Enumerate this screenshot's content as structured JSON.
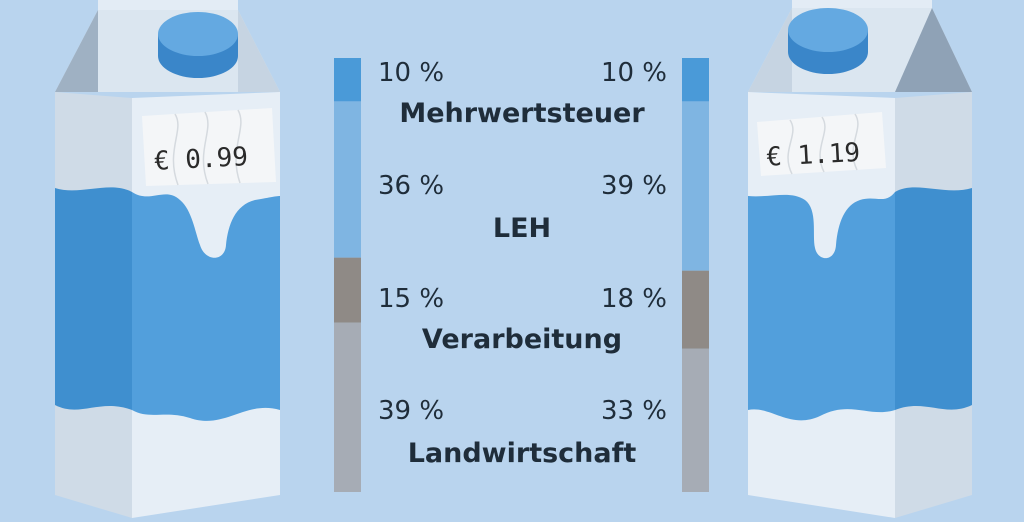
{
  "palette": {
    "background": "#b9d4ee",
    "mehrwertsteuer": "#4a9ad8",
    "leh": "#7fb5e2",
    "verarbeitung": "#8f8a86",
    "landwirtschaft": "#a6acb5"
  },
  "cartons": {
    "left_price": "€  0.99",
    "right_price": "€  1.19"
  },
  "chart_data": {
    "type": "bar",
    "stacked": true,
    "orientation": "vertical",
    "categories": [
      "Mehrwertsteuer",
      "LEH",
      "Verarbeitung",
      "Landwirtschaft"
    ],
    "series": [
      {
        "values": [
          10,
          36,
          15,
          39
        ],
        "labels": [
          "10 %",
          "36 %",
          "15 %",
          "39 %"
        ]
      },
      {
        "values": [
          10,
          39,
          18,
          33
        ],
        "labels": [
          "10 %",
          "39 %",
          "18 %",
          "33 %"
        ]
      }
    ],
    "ylim": [
      0,
      100
    ]
  }
}
